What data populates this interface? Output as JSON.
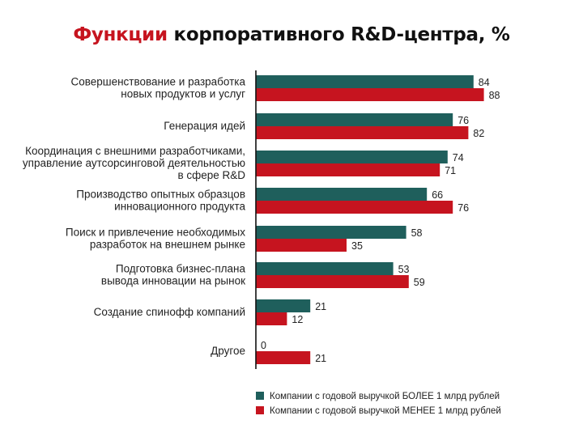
{
  "header": {
    "title_accent": "Функции",
    "title_rest": " корпоративного R&D-центра, %"
  },
  "colors": {
    "teal": "#1f5f5c",
    "red": "#c6141f",
    "axis": "#111111"
  },
  "chart_data": {
    "type": "bar",
    "orientation": "horizontal",
    "title": "Функции корпоративного R&D-центра, %",
    "xlim": [
      0,
      100
    ],
    "grid": false,
    "legend_position": "bottom",
    "categories": [
      [
        "Совершенствование и разработка",
        "новых продуктов и услуг"
      ],
      [
        "Генерация идей"
      ],
      [
        "Координация с внешними разработчиками,",
        "управление аутсорсинговой деятельностью",
        "в сфере R&D"
      ],
      [
        "Производство опытных образцов",
        "инновационного продукта"
      ],
      [
        "Поиск и привлечение необходимых",
        "разработок на внешнем рынке"
      ],
      [
        "Подготовка бизнес-плана",
        "вывода инновации на рынок"
      ],
      [
        "Создание спинофф компаний"
      ],
      [
        "Другое"
      ]
    ],
    "series": [
      {
        "name": "Компании с годовой выручкой БОЛЕЕ 1 млрд рублей",
        "color": "#1f5f5c",
        "values": [
          84,
          76,
          74,
          66,
          58,
          53,
          21,
          0
        ]
      },
      {
        "name": "Компании с годовой выручкой МЕНЕЕ 1 млрд рублей",
        "color": "#c6141f",
        "values": [
          88,
          82,
          71,
          76,
          35,
          59,
          12,
          21
        ]
      }
    ]
  }
}
